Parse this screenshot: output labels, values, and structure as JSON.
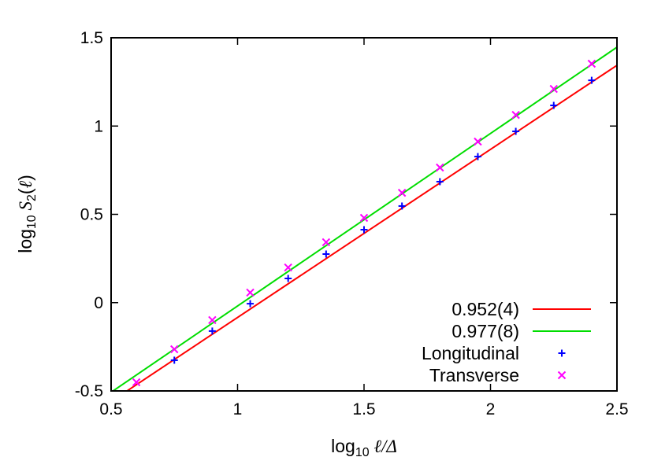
{
  "chart_data": {
    "type": "scatter",
    "xlabel": "log10 ℓ/Δ",
    "ylabel": "log10 S2(ℓ)",
    "xlim": [
      0.5,
      2.5
    ],
    "ylim": [
      -0.5,
      1.5
    ],
    "x_ticks": [
      "0.5",
      "1",
      "1.5",
      "2",
      "2.5"
    ],
    "y_ticks": [
      "-0.5",
      "0",
      "0.5",
      "1",
      "1.5"
    ],
    "grid": false,
    "legend_position": "bottom-right",
    "fits": [
      {
        "name": "0.952(4)",
        "slope": 0.952,
        "intercept": -1.036,
        "color": "#ff0000"
      },
      {
        "name": "0.977(8)",
        "slope": 0.977,
        "intercept": -0.996,
        "color": "#00dd00"
      }
    ],
    "series": [
      {
        "name": "Longitudinal",
        "marker": "plus",
        "color": "#0000ff",
        "x": [
          0.75,
          0.9,
          1.05,
          1.2,
          1.35,
          1.5,
          1.65,
          1.8,
          1.95,
          2.1,
          2.25,
          2.4
        ],
        "y": [
          -0.326,
          -0.161,
          -0.006,
          0.137,
          0.275,
          0.413,
          0.547,
          0.685,
          0.827,
          0.97,
          1.117,
          1.259
        ]
      },
      {
        "name": "Transverse",
        "marker": "cross",
        "color": "#ff00ff",
        "x": [
          0.6,
          0.75,
          0.9,
          1.05,
          1.2,
          1.35,
          1.5,
          1.65,
          1.8,
          1.95,
          2.1,
          2.25,
          2.4
        ],
        "y": [
          -0.451,
          -0.264,
          -0.099,
          0.057,
          0.199,
          0.342,
          0.48,
          0.622,
          0.765,
          0.912,
          1.063,
          1.21,
          1.353
        ]
      }
    ]
  }
}
